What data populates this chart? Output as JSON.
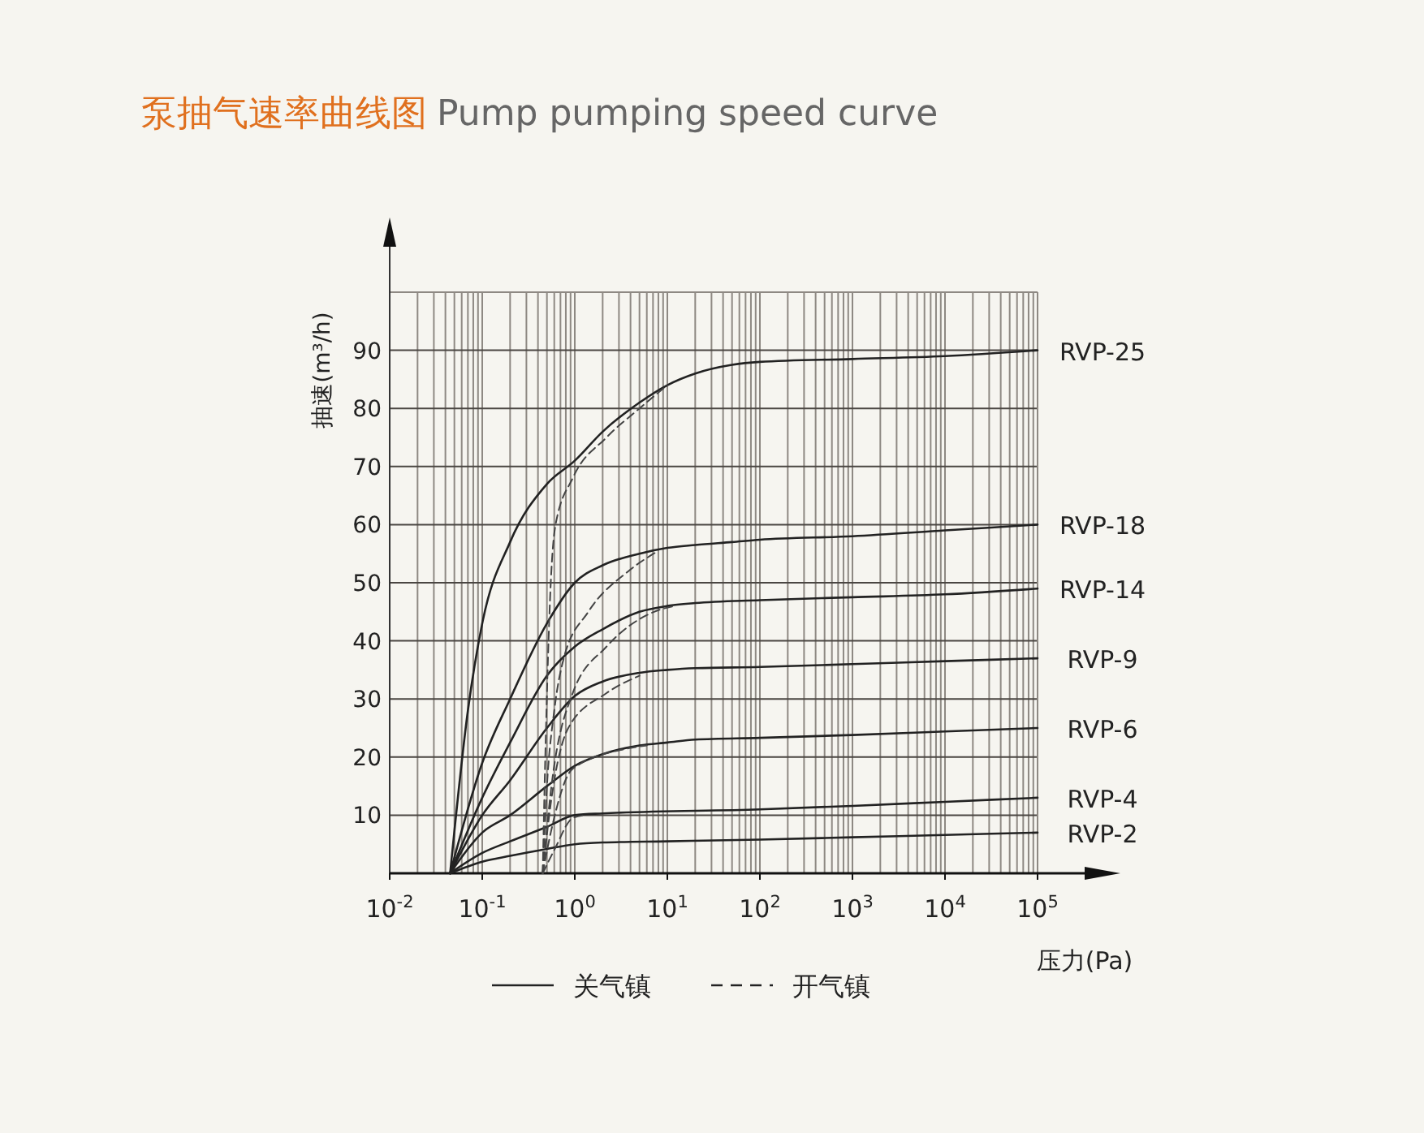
{
  "chart_data": {
    "type": "line",
    "title": "泵抽气速率曲线图",
    "subtitle": "Pump pumping speed curve",
    "xlabel": "压力(Pa)",
    "ylabel": "抽速(m³/h)",
    "log": "x",
    "xlim": [
      0.01,
      100000
    ],
    "ylim": [
      0,
      100
    ],
    "xticks": [
      {
        "value": 0.01,
        "label": "10$^{-2}$"
      },
      {
        "value": 0.1,
        "label": "10$^{-1}$"
      },
      {
        "value": 1,
        "label": "10$^{0}$"
      },
      {
        "value": 10,
        "label": "10$^{1}$"
      },
      {
        "value": 100,
        "label": "10$^{2}$"
      },
      {
        "value": 1000,
        "label": "10$^{3}$"
      },
      {
        "value": 10000,
        "label": "10$^{4}$"
      },
      {
        "value": 100000,
        "label": "10$^{5}$"
      }
    ],
    "yticks": [
      10,
      20,
      30,
      40,
      50,
      60,
      70,
      80,
      90
    ],
    "grid": true,
    "annotations": [
      "关气镇",
      "开气镇"
    ],
    "series": [
      {
        "name": "RVP-25",
        "color": "#222222",
        "line_style": "solid",
        "x": [
          0.045,
          0.07,
          0.1,
          0.2,
          0.5,
          1,
          2,
          5,
          10,
          20,
          50,
          100,
          1000,
          10000,
          100000
        ],
        "values": [
          0,
          28,
          43,
          57,
          67,
          71,
          76,
          81,
          84,
          86,
          87.5,
          88,
          88.5,
          89,
          90
        ]
      },
      {
        "name": "RVP-18",
        "color": "#222222",
        "line_style": "solid",
        "x": [
          0.045,
          0.1,
          0.2,
          0.5,
          1,
          2,
          5,
          10,
          20,
          50,
          100,
          1000,
          10000,
          100000
        ],
        "values": [
          0,
          19,
          30,
          43,
          50,
          53,
          55,
          56,
          56.5,
          57,
          57.4,
          58,
          59,
          60
        ]
      },
      {
        "name": "RVP-14",
        "color": "#222222",
        "line_style": "solid",
        "x": [
          0.045,
          0.1,
          0.2,
          0.5,
          1,
          2,
          5,
          10,
          20,
          100,
          1000,
          10000,
          100000
        ],
        "values": [
          0,
          13,
          22.5,
          34,
          39,
          42,
          45,
          46,
          46.5,
          47,
          47.5,
          48,
          49
        ]
      },
      {
        "name": "RVP-9",
        "color": "#222222",
        "line_style": "solid",
        "x": [
          0.045,
          0.1,
          0.2,
          0.5,
          1,
          2,
          5,
          10,
          20,
          100,
          1000,
          10000,
          100000
        ],
        "values": [
          0,
          10,
          16,
          25,
          30.5,
          33,
          34.5,
          35,
          35.3,
          35.5,
          36,
          36.5,
          37
        ]
      },
      {
        "name": "RVP-6",
        "color": "#222222",
        "line_style": "solid",
        "x": [
          0.045,
          0.1,
          0.2,
          0.5,
          1,
          2,
          5,
          10,
          20,
          100,
          1000,
          10000,
          100000
        ],
        "values": [
          0,
          7,
          10,
          15,
          18.5,
          20.5,
          22,
          22.5,
          23,
          23.3,
          23.8,
          24.4,
          25
        ]
      },
      {
        "name": "RVP-4",
        "color": "#222222",
        "line_style": "solid",
        "x": [
          0.045,
          0.1,
          0.2,
          0.5,
          1,
          2,
          100,
          1000,
          10000,
          100000
        ],
        "values": [
          0,
          3.5,
          5.5,
          8,
          10,
          10.3,
          11,
          11.6,
          12.3,
          13
        ]
      },
      {
        "name": "RVP-2",
        "color": "#222222",
        "line_style": "solid",
        "x": [
          0.045,
          0.1,
          0.2,
          0.5,
          1,
          2,
          10,
          100,
          1000,
          10000,
          100000
        ],
        "values": [
          0,
          2,
          3,
          4.2,
          5,
          5.3,
          5.5,
          5.8,
          6.2,
          6.6,
          7
        ]
      },
      {
        "color": "#444444",
        "line_style": "dashed",
        "x": [
          0.45,
          0.48,
          0.55,
          0.62,
          0.95,
          2.2,
          5,
          10
        ],
        "values": [
          0,
          20,
          50,
          60,
          68,
          75,
          80,
          84
        ]
      },
      {
        "color": "#444444",
        "line_style": "dashed",
        "x": [
          0.45,
          0.5,
          0.6,
          0.76,
          1.4,
          3.8,
          8
        ],
        "values": [
          0,
          15,
          28,
          37,
          45,
          52,
          55.5
        ]
      },
      {
        "color": "#444444",
        "line_style": "dashed",
        "x": [
          0.45,
          0.55,
          0.95,
          2.2,
          7.2,
          12
        ],
        "values": [
          0,
          14,
          31,
          39,
          45,
          46
        ]
      },
      {
        "color": "#444444",
        "line_style": "dashed",
        "x": [
          0.45,
          0.55,
          0.85,
          2.2,
          5
        ],
        "values": [
          0,
          12,
          25,
          31,
          34
        ]
      },
      {
        "color": "#444444",
        "line_style": "dashed",
        "x": [
          0.45,
          0.55,
          0.95,
          3.8,
          6
        ],
        "values": [
          0,
          7,
          18,
          21.5,
          22
        ]
      },
      {
        "color": "#444444",
        "line_style": "dashed",
        "x": [
          0.45,
          0.6,
          0.95,
          1.3
        ],
        "values": [
          0,
          4,
          9.5,
          10
        ]
      }
    ]
  }
}
